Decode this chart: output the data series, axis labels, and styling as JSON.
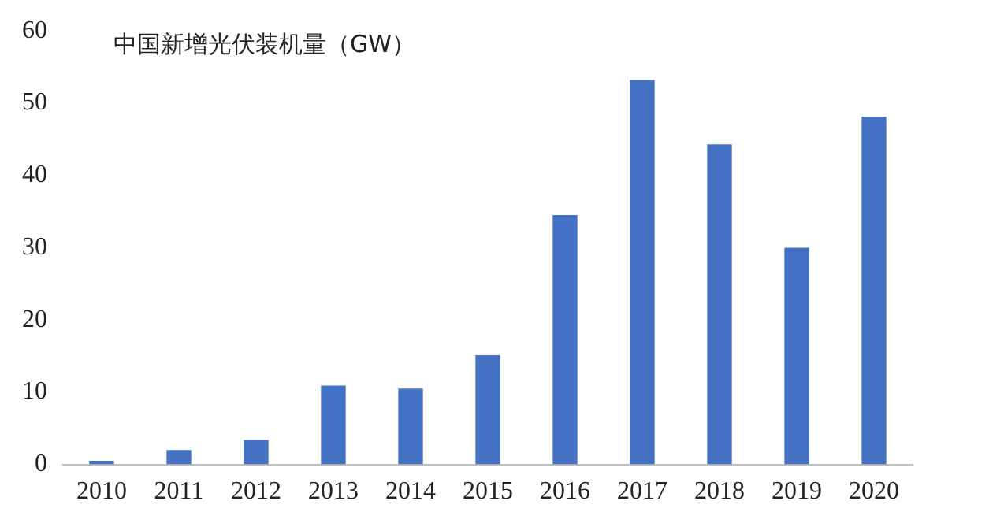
{
  "chart_data": {
    "type": "bar",
    "title": "中国新增光伏装机量（GW）",
    "categories": [
      "2010",
      "2011",
      "2012",
      "2013",
      "2014",
      "2015",
      "2016",
      "2017",
      "2018",
      "2019",
      "2020"
    ],
    "values": [
      0.5,
      2,
      3.4,
      10.9,
      10.5,
      15.1,
      34.5,
      53.2,
      44.3,
      30,
      48.1
    ],
    "color": "#4472c4",
    "ylim": [
      0,
      60
    ],
    "yticks": [
      0,
      10,
      20,
      30,
      40,
      50,
      60
    ],
    "grid": false,
    "legend": false
  }
}
